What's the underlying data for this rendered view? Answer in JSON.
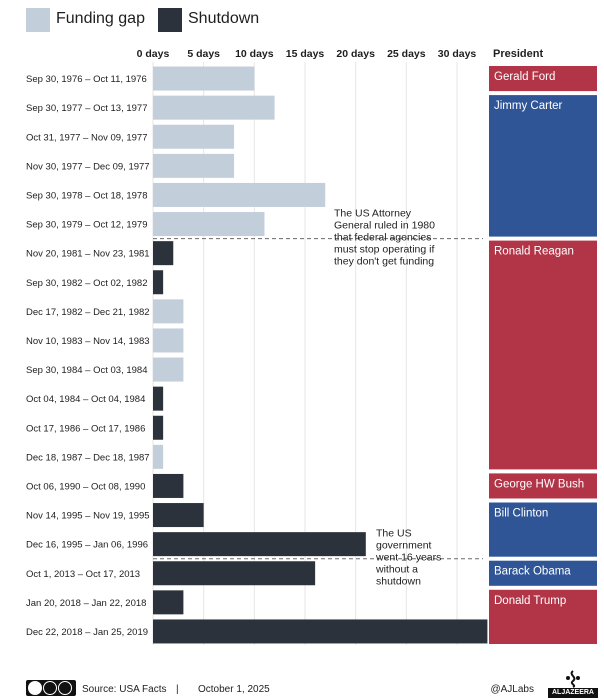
{
  "legend": [
    {
      "label": "Funding gap",
      "color": "#c3cedb"
    },
    {
      "label": "Shutdown",
      "color": "#2b323b"
    }
  ],
  "chart_data": {
    "type": "bar",
    "orientation": "horizontal",
    "x_ticks": [
      "0 days",
      "5 days",
      "10 days",
      "15 days",
      "20 days",
      "25 days",
      "30 days"
    ],
    "xlim": [
      0,
      33
    ],
    "grid": true,
    "president_header": "President",
    "categories": [
      "Sep 30, 1976 – Oct 11, 1976",
      "Sep 30, 1977 – Oct 13, 1977",
      "Oct 31, 1977 – Nov 09, 1977",
      "Nov 30, 1977 – Dec 09, 1977",
      "Sep 30, 1978 – Oct 18, 1978",
      "Sep 30, 1979 – Oct 12, 1979",
      "Nov 20, 1981 – Nov 23, 1981",
      "Sep 30, 1982 – Oct 02, 1982",
      "Dec 17, 1982 – Dec 21, 1982",
      "Nov 10, 1983 – Nov 14, 1983",
      "Sep 30, 1984 – Oct 03, 1984",
      "Oct 04, 1984 – Oct 04, 1984",
      "Oct 17, 1986 – Oct 17, 1986",
      "Dec 18, 1987 – Dec 18, 1987",
      "Oct 06, 1990 – Oct 08, 1990",
      "Nov 14, 1995 – Nov 19, 1995",
      "Dec 16, 1995 – Jan 06, 1996",
      "Oct 1, 2013 – Oct 17, 2013",
      "Jan 20, 2018 – Jan 22, 2018",
      "Dec 22, 2018 – Jan 25, 2019"
    ],
    "values": [
      10,
      12,
      8,
      8,
      17,
      11,
      2,
      1,
      3,
      3,
      3,
      1,
      1,
      1,
      3,
      5,
      21,
      16,
      3,
      33
    ],
    "types": [
      "Funding gap",
      "Funding gap",
      "Funding gap",
      "Funding gap",
      "Funding gap",
      "Funding gap",
      "Shutdown",
      "Shutdown",
      "Funding gap",
      "Funding gap",
      "Funding gap",
      "Shutdown",
      "Shutdown",
      "Funding gap",
      "Shutdown",
      "Shutdown",
      "Shutdown",
      "Shutdown",
      "Shutdown",
      "Shutdown"
    ],
    "presidents": [
      {
        "name": "Gerald Ford",
        "rows": [
          0,
          0
        ],
        "color": "#b23447"
      },
      {
        "name": "Jimmy Carter",
        "rows": [
          1,
          5
        ],
        "color": "#2f5597"
      },
      {
        "name": "Ronald Reagan",
        "rows": [
          6,
          13
        ],
        "color": "#b23447"
      },
      {
        "name": "George HW Bush",
        "rows": [
          14,
          14
        ],
        "color": "#b23447"
      },
      {
        "name": "Bill Clinton",
        "rows": [
          15,
          16
        ],
        "color": "#2f5597"
      },
      {
        "name": "Barack Obama",
        "rows": [
          17,
          17
        ],
        "color": "#2f5597"
      },
      {
        "name": "Donald Trump",
        "rows": [
          18,
          19
        ],
        "color": "#b23447"
      }
    ],
    "annotations": [
      {
        "after_row": 5,
        "lines": [
          "The US Attorney",
          "General ruled in 1980",
          "that federal agencies",
          "must stop operating if",
          "they don't get funding"
        ]
      },
      {
        "after_row": 16,
        "lines": [
          "The US",
          "government",
          "went 16 years",
          "without a",
          "shutdown"
        ]
      }
    ]
  },
  "footer": {
    "source": "Source: USA Facts",
    "separator": "|",
    "date": "October 1, 2025",
    "handle": "@AJLabs",
    "brand": "ALJAZEERA"
  }
}
